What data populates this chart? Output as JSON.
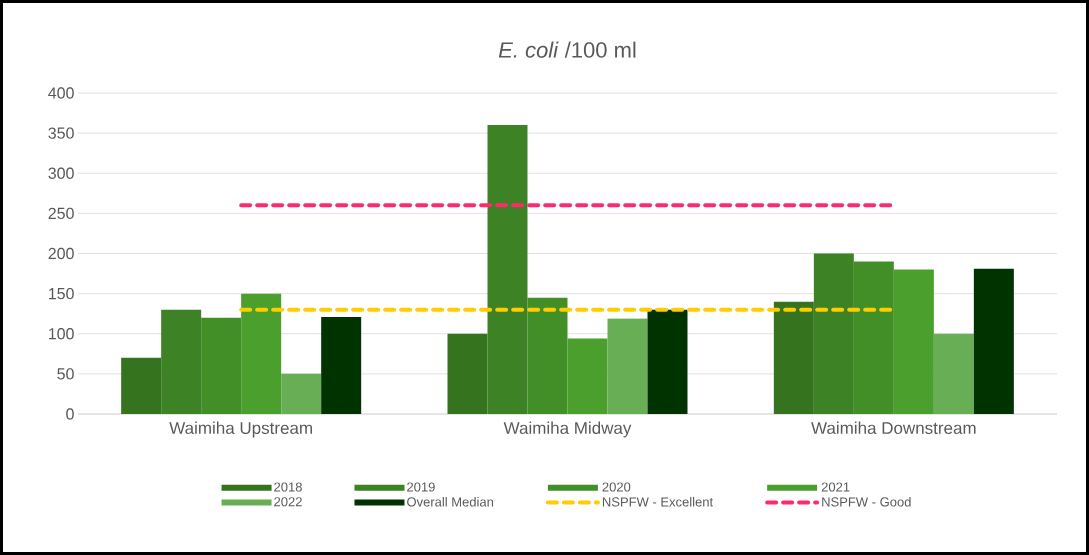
{
  "chart_data": {
    "type": "bar",
    "title": "*E. coli* /100 ml",
    "categories": [
      "Waimiha Upstream",
      "Waimiha Midway",
      "Waimiha Downstream"
    ],
    "series": [
      {
        "name": "2018",
        "color": "#35731f",
        "values": [
          70,
          100,
          140
        ]
      },
      {
        "name": "2019",
        "color": "#3d8224",
        "values": [
          130,
          360,
          200
        ]
      },
      {
        "name": "2020",
        "color": "#428f28",
        "values": [
          120,
          145,
          190
        ]
      },
      {
        "name": "2021",
        "color": "#4b9f2d",
        "values": [
          150,
          94,
          180
        ]
      },
      {
        "name": "2022",
        "color": "#68ae55",
        "values": [
          50,
          119,
          100
        ]
      },
      {
        "name": "Overall Median",
        "color": "#003300",
        "values": [
          121,
          130,
          181
        ]
      },
      {
        "name": "NSPFW - Excellent",
        "type": "line",
        "line_style": "dashed",
        "color": "#ffcc00",
        "values": [
          130,
          130,
          130
        ]
      },
      {
        "name": "NSPFW - Good",
        "type": "line",
        "line_style": "dashed",
        "color": "#ff2a6d",
        "values": [
          260,
          260,
          260
        ]
      }
    ],
    "ylim": [
      0,
      400
    ],
    "yticks": [
      0,
      50,
      100,
      150,
      200,
      250,
      300,
      350,
      400
    ],
    "grid": "y",
    "legend": "bottom"
  }
}
